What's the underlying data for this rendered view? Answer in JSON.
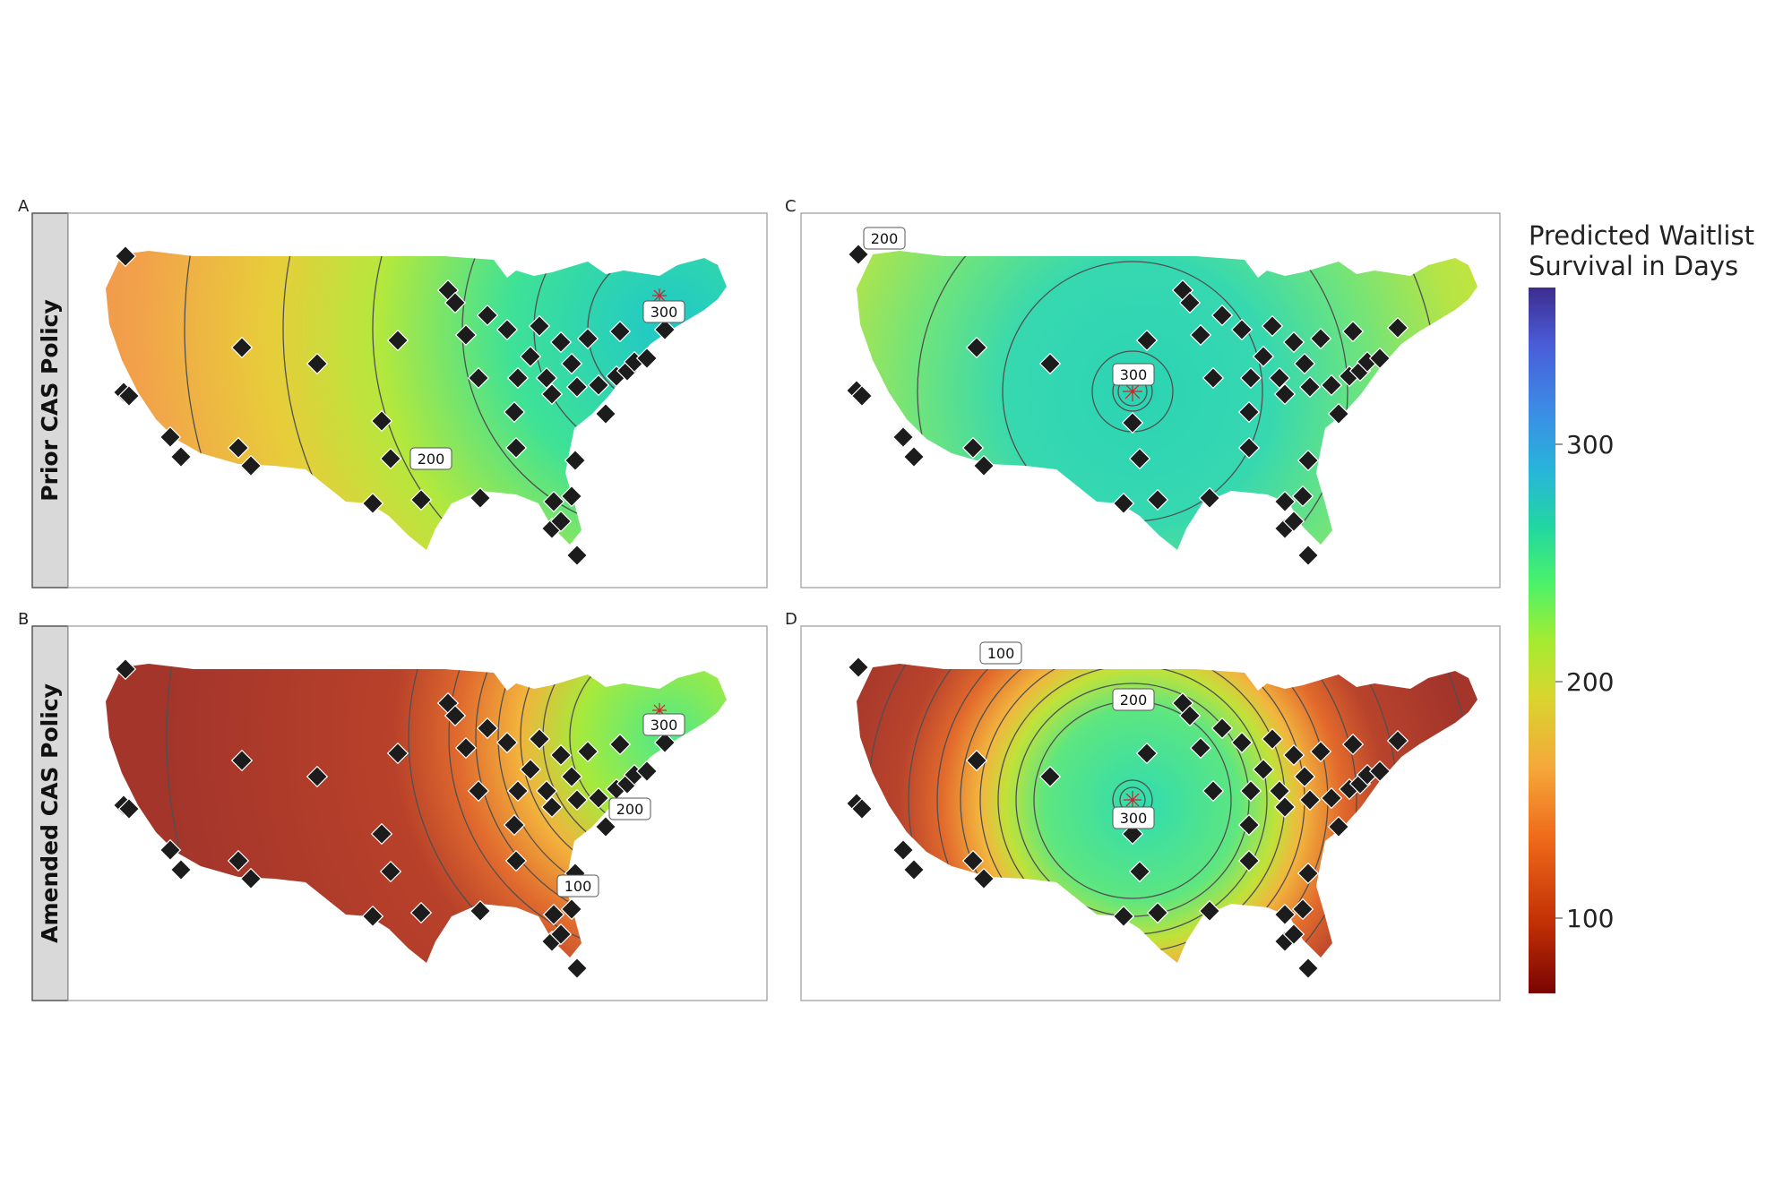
{
  "panels": [
    {
      "id": "A",
      "letter": "A",
      "row_label": "Prior CAS Policy",
      "contour_labels": [
        "300",
        "200"
      ],
      "scenario": "prior-east"
    },
    {
      "id": "C",
      "letter": "C",
      "row_label": "",
      "contour_labels": [
        "200",
        "300"
      ],
      "scenario": "prior-center"
    },
    {
      "id": "B",
      "letter": "B",
      "row_label": "Amended CAS Policy",
      "contour_labels": [
        "300",
        "200",
        "100"
      ],
      "scenario": "amended-east"
    },
    {
      "id": "D",
      "letter": "D",
      "row_label": "",
      "contour_labels": [
        "100",
        "200",
        "300"
      ],
      "scenario": "amended-center"
    }
  ],
  "legend": {
    "title_line1": "Predicted Waitlist",
    "title_line2": "Survival in Days",
    "ticks": [
      "300",
      "200",
      "100"
    ],
    "colormap": [
      "#7a0403",
      "#c23005",
      "#ef6a1a",
      "#f5a83a",
      "#d9d52f",
      "#a4ec31",
      "#4cf26a",
      "#22d7a0",
      "#28b5d9",
      "#3c8ae6",
      "#4a5cd8",
      "#3d2c8f"
    ]
  },
  "colors": {
    "strip_fill": "#d9d9d9",
    "panel_border": "#9a9a9a",
    "marker": "#1c1c1c",
    "contour": "#505050",
    "dark_red": "#a3352b"
  }
}
